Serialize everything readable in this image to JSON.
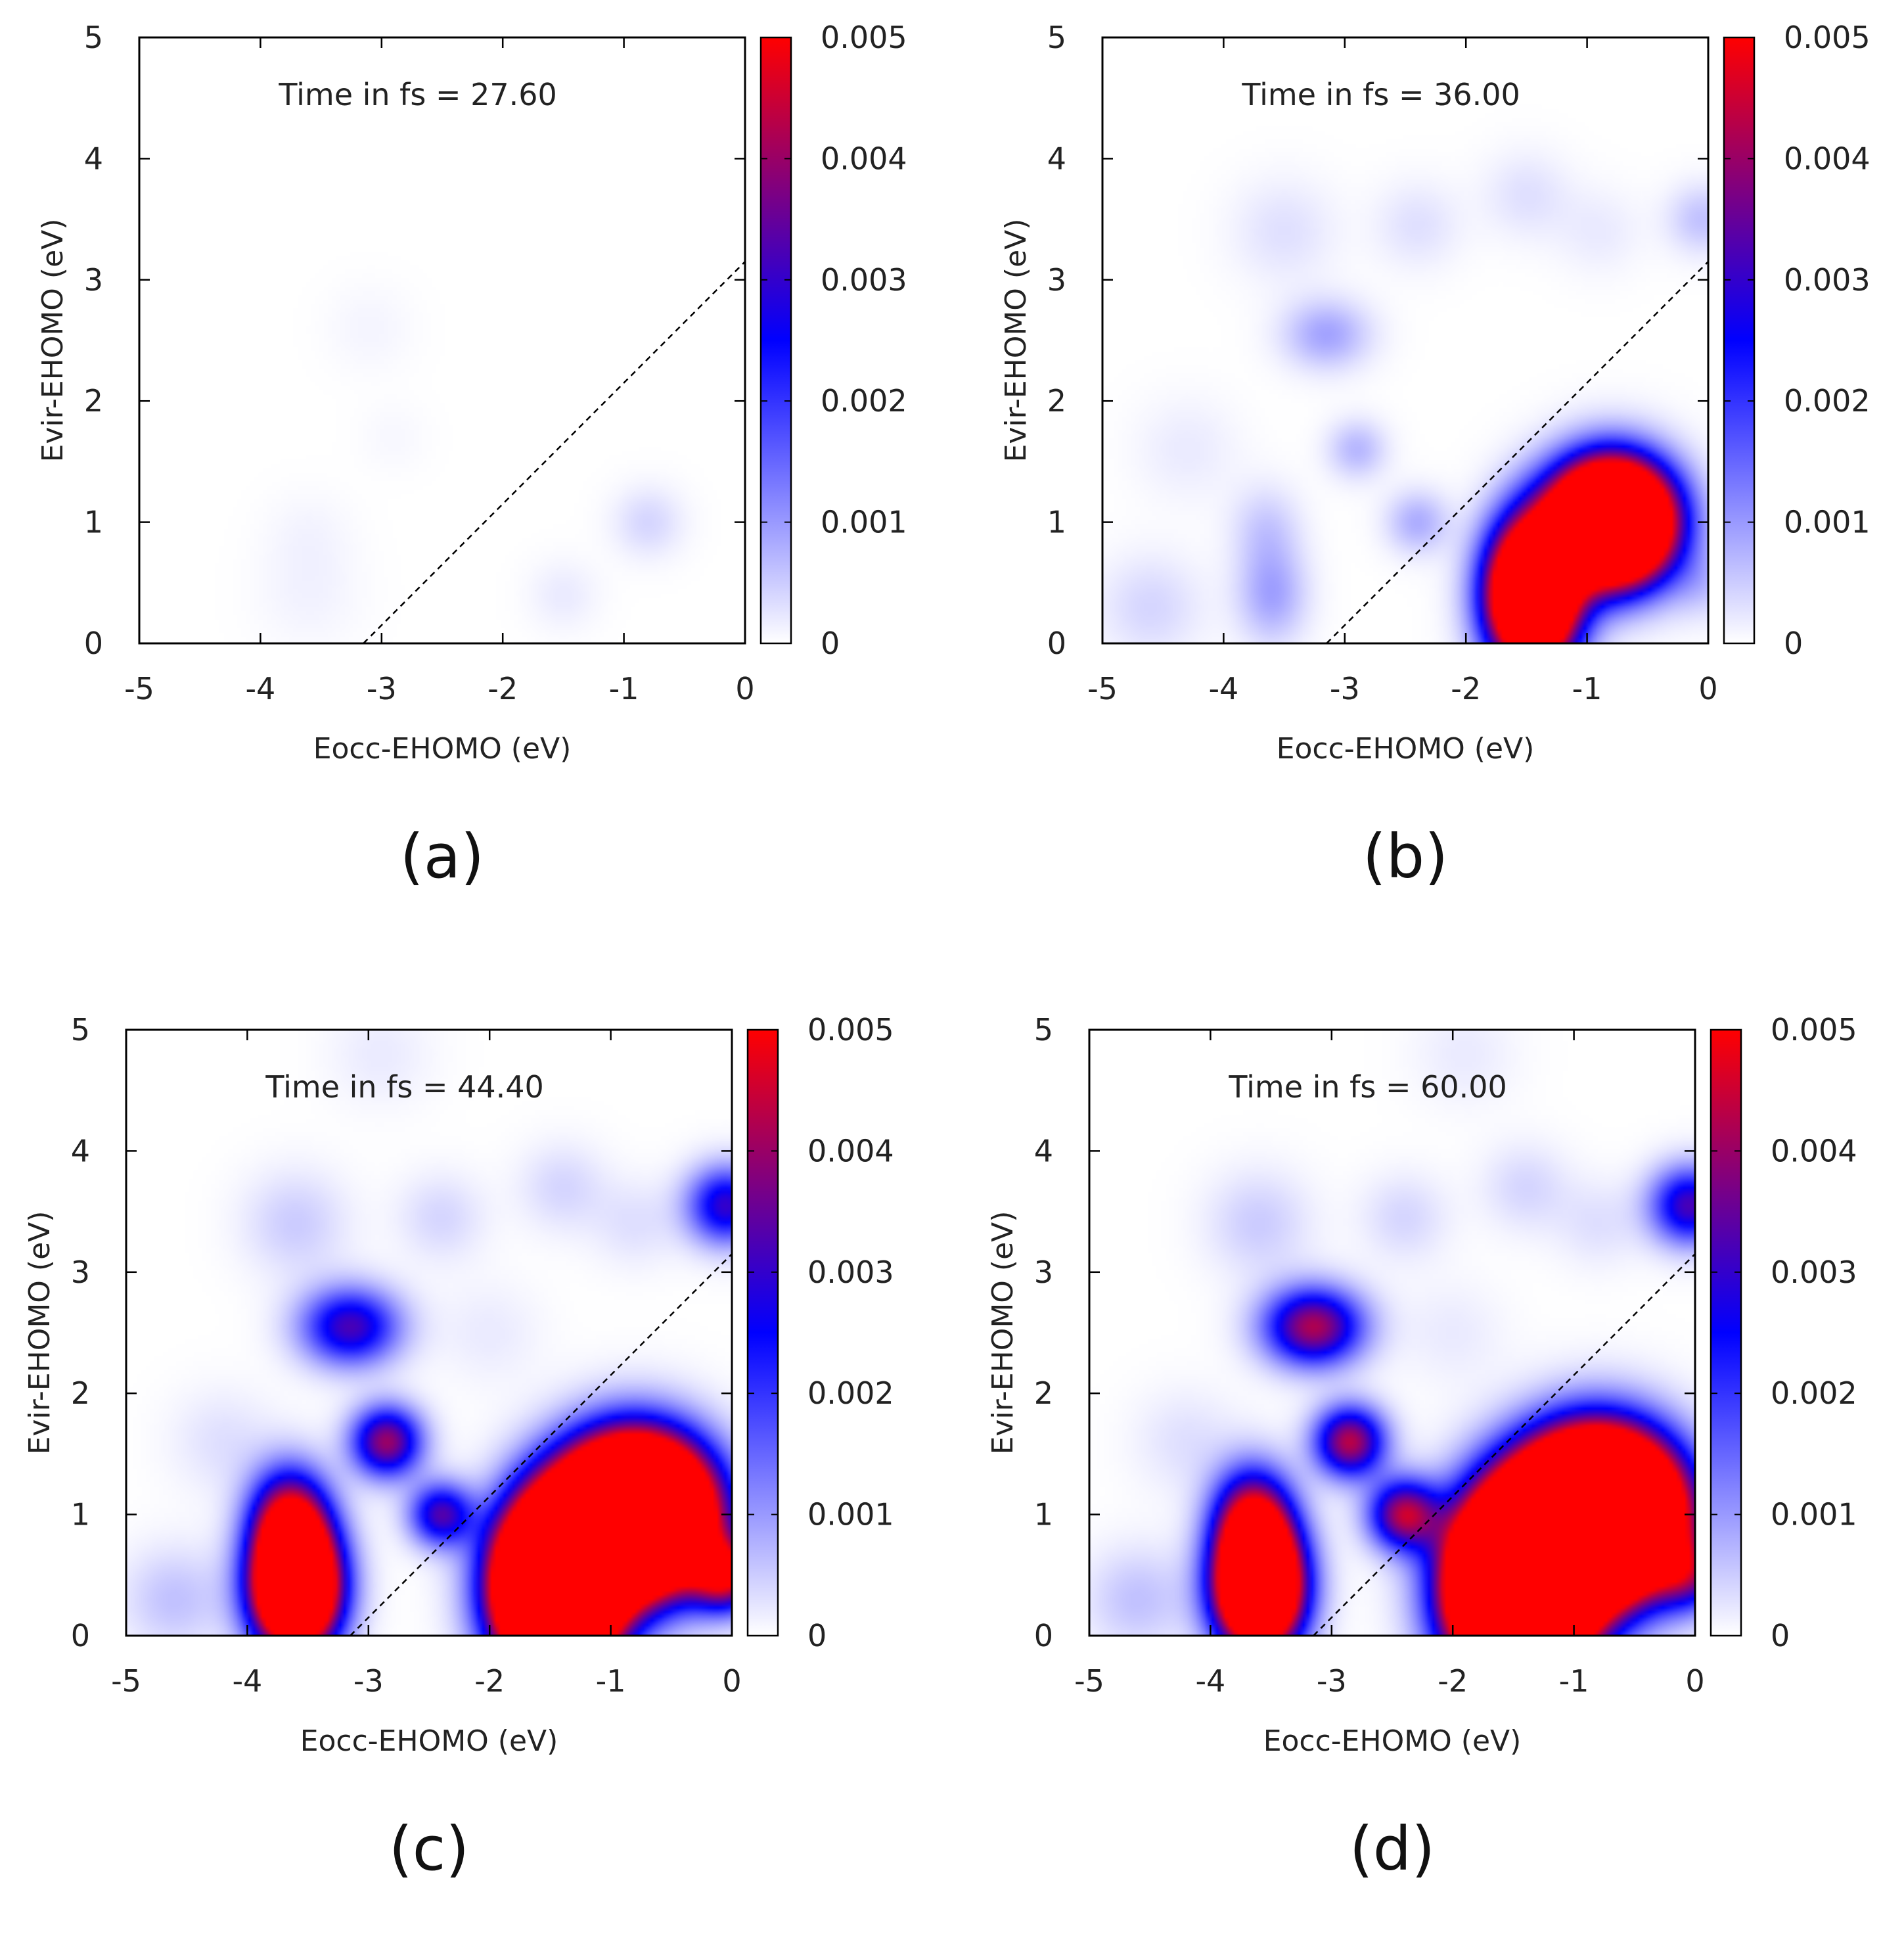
{
  "chart_data": [
    {
      "type": "heatmap",
      "panel_label": "(a)",
      "annotation": "Time in fs = 27.60",
      "xlabel": "Eocc-EHOMO (eV)",
      "ylabel": "Evir-EHOMO (eV)",
      "xlim": [
        -5,
        0
      ],
      "ylim": [
        0,
        5
      ],
      "xticks": [
        "-5",
        "-4",
        "-3",
        "-2",
        "-1",
        "0"
      ],
      "yticks": [
        "0",
        "1",
        "2",
        "3",
        "4",
        "5"
      ],
      "colorbar": {
        "range": [
          0,
          0.005
        ],
        "ticks": [
          "0",
          "0.001",
          "0.002",
          "0.003",
          "0.004",
          "0.005"
        ],
        "colors": [
          "#ffffff",
          "#0000ff",
          "#ff0000"
        ]
      },
      "diagonal": {
        "from": [
          -3.15,
          0
        ],
        "to": [
          0,
          3.15
        ]
      },
      "peaks": [
        {
          "x": -0.8,
          "y": 1.0,
          "value": 0.0004,
          "sx": 0.2,
          "sy": 0.2
        },
        {
          "x": -1.5,
          "y": 0.4,
          "value": 0.0002,
          "sx": 0.2,
          "sy": 0.2
        },
        {
          "x": -3.6,
          "y": 0.4,
          "value": 0.00012,
          "sx": 0.3,
          "sy": 0.3
        },
        {
          "x": -3.6,
          "y": 0.9,
          "value": 0.0001,
          "sx": 0.25,
          "sy": 0.25
        },
        {
          "x": -3.1,
          "y": 2.6,
          "value": 0.0001,
          "sx": 0.25,
          "sy": 0.25
        },
        {
          "x": -2.9,
          "y": 1.7,
          "value": 7e-05,
          "sx": 0.2,
          "sy": 0.2
        }
      ]
    },
    {
      "type": "heatmap",
      "panel_label": "(b)",
      "annotation": "Time in fs = 36.00",
      "xlabel": "Eocc-EHOMO (eV)",
      "ylabel": "Evir-EHOMO (eV)",
      "xlim": [
        -5,
        0
      ],
      "ylim": [
        0,
        5
      ],
      "xticks": [
        "-5",
        "-4",
        "-3",
        "-2",
        "-1",
        "0"
      ],
      "yticks": [
        "0",
        "1",
        "2",
        "3",
        "4",
        "5"
      ],
      "colorbar": {
        "range": [
          0,
          0.005
        ],
        "ticks": [
          "0",
          "0.001",
          "0.002",
          "0.003",
          "0.004",
          "0.005"
        ],
        "colors": [
          "#ffffff",
          "#0000ff",
          "#ff0000"
        ]
      },
      "diagonal": {
        "from": [
          -3.15,
          0
        ],
        "to": [
          0,
          3.15
        ]
      },
      "peaks": [
        {
          "x": -0.8,
          "y": 1.0,
          "value": 0.016,
          "sx": 0.33,
          "sy": 0.33
        },
        {
          "x": -1.45,
          "y": 0.4,
          "value": 0.012,
          "sx": 0.25,
          "sy": 0.4
        },
        {
          "x": -3.6,
          "y": 0.4,
          "value": 0.0009,
          "sx": 0.2,
          "sy": 0.28
        },
        {
          "x": -3.65,
          "y": 0.95,
          "value": 0.0005,
          "sx": 0.2,
          "sy": 0.25
        },
        {
          "x": -3.15,
          "y": 2.55,
          "value": 0.0009,
          "sx": 0.25,
          "sy": 0.2
        },
        {
          "x": -2.9,
          "y": 1.6,
          "value": 0.0007,
          "sx": 0.17,
          "sy": 0.17
        },
        {
          "x": -2.4,
          "y": 1.0,
          "value": 0.0008,
          "sx": 0.18,
          "sy": 0.18
        },
        {
          "x": -0.05,
          "y": 3.5,
          "value": 0.0006,
          "sx": 0.2,
          "sy": 0.2
        },
        {
          "x": -0.05,
          "y": 0.5,
          "value": 0.0005,
          "sx": 0.2,
          "sy": 0.2
        },
        {
          "x": -4.6,
          "y": 0.3,
          "value": 0.0004,
          "sx": 0.3,
          "sy": 0.3
        },
        {
          "x": -3.5,
          "y": 3.4,
          "value": 0.0003,
          "sx": 0.3,
          "sy": 0.3
        },
        {
          "x": -2.4,
          "y": 3.45,
          "value": 0.0003,
          "sx": 0.25,
          "sy": 0.25
        },
        {
          "x": -1.5,
          "y": 3.7,
          "value": 0.0003,
          "sx": 0.25,
          "sy": 0.25
        },
        {
          "x": -0.9,
          "y": 3.4,
          "value": 0.0002,
          "sx": 0.25,
          "sy": 0.25
        },
        {
          "x": -4.3,
          "y": 1.6,
          "value": 0.0002,
          "sx": 0.3,
          "sy": 0.3
        }
      ]
    },
    {
      "type": "heatmap",
      "panel_label": "(c)",
      "annotation": "Time in fs = 44.40",
      "xlabel": "Eocc-EHOMO (eV)",
      "ylabel": "Evir-EHOMO (eV)",
      "xlim": [
        -5,
        0
      ],
      "ylim": [
        0,
        5
      ],
      "xticks": [
        "-5",
        "-4",
        "-3",
        "-2",
        "-1",
        "0"
      ],
      "yticks": [
        "0",
        "1",
        "2",
        "3",
        "4",
        "5"
      ],
      "colorbar": {
        "range": [
          0,
          0.005
        ],
        "ticks": [
          "0",
          "0.001",
          "0.002",
          "0.003",
          "0.004",
          "0.005"
        ],
        "colors": [
          "#ffffff",
          "#0000ff",
          "#ff0000"
        ]
      },
      "diagonal": {
        "from": [
          -3.15,
          0
        ],
        "to": [
          0,
          3.15
        ]
      },
      "peaks": [
        {
          "x": -0.8,
          "y": 1.0,
          "value": 0.02,
          "sx": 0.4,
          "sy": 0.4
        },
        {
          "x": -1.45,
          "y": 0.4,
          "value": 0.02,
          "sx": 0.32,
          "sy": 0.45
        },
        {
          "x": -3.6,
          "y": 0.4,
          "value": 0.012,
          "sx": 0.24,
          "sy": 0.35
        },
        {
          "x": -3.65,
          "y": 0.95,
          "value": 0.0045,
          "sx": 0.22,
          "sy": 0.3
        },
        {
          "x": -3.15,
          "y": 2.55,
          "value": 0.0032,
          "sx": 0.28,
          "sy": 0.22
        },
        {
          "x": -2.85,
          "y": 1.6,
          "value": 0.004,
          "sx": 0.2,
          "sy": 0.2
        },
        {
          "x": -2.4,
          "y": 1.0,
          "value": 0.0032,
          "sx": 0.18,
          "sy": 0.18
        },
        {
          "x": -0.05,
          "y": 3.55,
          "value": 0.003,
          "sx": 0.22,
          "sy": 0.22
        },
        {
          "x": -0.05,
          "y": 0.5,
          "value": 0.0045,
          "sx": 0.2,
          "sy": 0.2
        },
        {
          "x": -4.6,
          "y": 0.3,
          "value": 0.0006,
          "sx": 0.3,
          "sy": 0.3
        },
        {
          "x": -3.6,
          "y": 3.4,
          "value": 0.0005,
          "sx": 0.3,
          "sy": 0.3
        },
        {
          "x": -2.4,
          "y": 3.45,
          "value": 0.0004,
          "sx": 0.25,
          "sy": 0.25
        },
        {
          "x": -1.4,
          "y": 3.7,
          "value": 0.0004,
          "sx": 0.25,
          "sy": 0.25
        },
        {
          "x": -0.8,
          "y": 3.4,
          "value": 0.0003,
          "sx": 0.25,
          "sy": 0.25
        },
        {
          "x": -4.2,
          "y": 1.6,
          "value": 0.0003,
          "sx": 0.3,
          "sy": 0.3
        },
        {
          "x": -2.0,
          "y": 2.5,
          "value": 0.0002,
          "sx": 0.3,
          "sy": 0.3
        },
        {
          "x": -2.9,
          "y": 4.8,
          "value": 0.0002,
          "sx": 0.3,
          "sy": 0.3
        }
      ]
    },
    {
      "type": "heatmap",
      "panel_label": "(d)",
      "annotation": "Time in fs = 60.00",
      "xlabel": "Eocc-EHOMO (eV)",
      "ylabel": "Evir-EHOMO (eV)",
      "xlim": [
        -5,
        0
      ],
      "ylim": [
        0,
        5
      ],
      "xticks": [
        "-5",
        "-4",
        "-3",
        "-2",
        "-1",
        "0"
      ],
      "yticks": [
        "0",
        "1",
        "2",
        "3",
        "4",
        "5"
      ],
      "colorbar": {
        "range": [
          0,
          0.005
        ],
        "ticks": [
          "0",
          "0.001",
          "0.002",
          "0.003",
          "0.004",
          "0.005"
        ],
        "colors": [
          "#ffffff",
          "#0000ff",
          "#ff0000"
        ]
      },
      "diagonal": {
        "from": [
          -3.15,
          0
        ],
        "to": [
          0,
          3.15
        ]
      },
      "peaks": [
        {
          "x": -0.8,
          "y": 1.0,
          "value": 0.022,
          "sx": 0.42,
          "sy": 0.42
        },
        {
          "x": -1.45,
          "y": 0.4,
          "value": 0.022,
          "sx": 0.36,
          "sy": 0.48
        },
        {
          "x": -3.6,
          "y": 0.4,
          "value": 0.012,
          "sx": 0.24,
          "sy": 0.35
        },
        {
          "x": -3.65,
          "y": 0.95,
          "value": 0.0045,
          "sx": 0.22,
          "sy": 0.3
        },
        {
          "x": -3.15,
          "y": 2.55,
          "value": 0.0042,
          "sx": 0.28,
          "sy": 0.22
        },
        {
          "x": -2.85,
          "y": 1.6,
          "value": 0.0043,
          "sx": 0.2,
          "sy": 0.2
        },
        {
          "x": -2.4,
          "y": 1.0,
          "value": 0.0042,
          "sx": 0.2,
          "sy": 0.2
        },
        {
          "x": -0.05,
          "y": 3.55,
          "value": 0.0032,
          "sx": 0.22,
          "sy": 0.22
        },
        {
          "x": -0.05,
          "y": 0.5,
          "value": 0.0025,
          "sx": 0.2,
          "sy": 0.2
        },
        {
          "x": -4.6,
          "y": 0.3,
          "value": 0.0006,
          "sx": 0.3,
          "sy": 0.3
        },
        {
          "x": -3.6,
          "y": 3.4,
          "value": 0.0005,
          "sx": 0.3,
          "sy": 0.3
        },
        {
          "x": -2.4,
          "y": 3.45,
          "value": 0.0004,
          "sx": 0.25,
          "sy": 0.25
        },
        {
          "x": -1.4,
          "y": 3.7,
          "value": 0.0004,
          "sx": 0.25,
          "sy": 0.25
        },
        {
          "x": -0.8,
          "y": 3.4,
          "value": 0.0003,
          "sx": 0.25,
          "sy": 0.25
        },
        {
          "x": -4.2,
          "y": 1.6,
          "value": 0.0003,
          "sx": 0.3,
          "sy": 0.3
        },
        {
          "x": -2.0,
          "y": 2.5,
          "value": 0.0002,
          "sx": 0.3,
          "sy": 0.3
        },
        {
          "x": -1.9,
          "y": 4.8,
          "value": 0.0002,
          "sx": 0.3,
          "sy": 0.3
        }
      ]
    }
  ]
}
